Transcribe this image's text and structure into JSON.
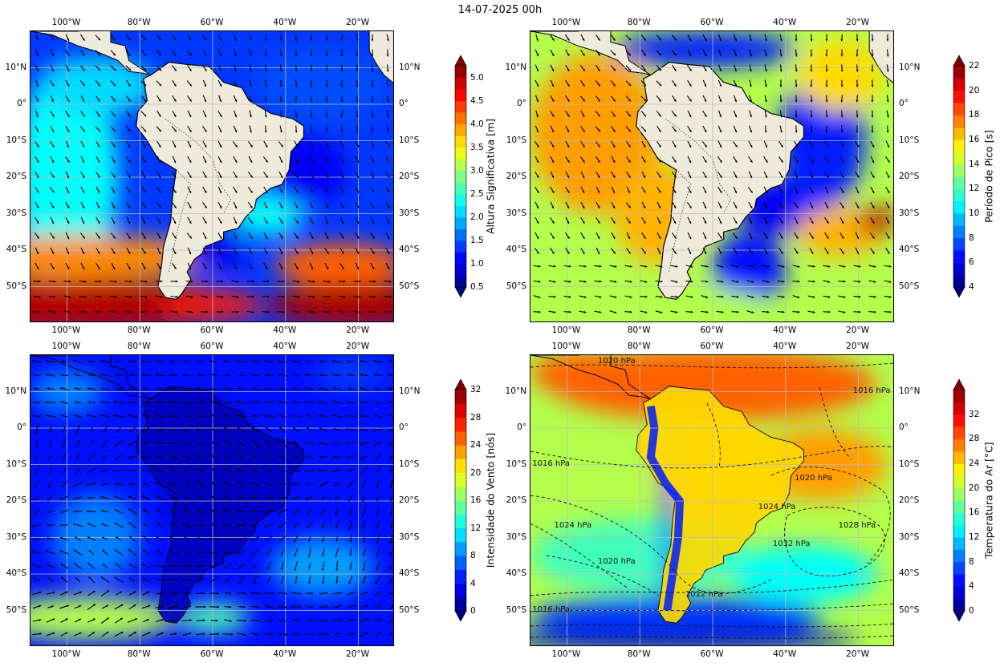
{
  "suptitle": "14-07-2025 00h",
  "axes": {
    "lon_ticks": [
      "100°W",
      "80°W",
      "60°W",
      "40°W",
      "20°W"
    ],
    "lon_values": [
      -100,
      -80,
      -60,
      -40,
      -20
    ],
    "lat_ticks": [
      "10°N",
      "0°",
      "10°S",
      "20°S",
      "30°S",
      "40°S",
      "50°S"
    ],
    "lat_values": [
      10,
      0,
      -10,
      -20,
      -30,
      -40,
      -50
    ],
    "lon_range": [
      -110,
      -10
    ],
    "lat_range": [
      -60,
      20
    ]
  },
  "panels": [
    {
      "id": "wave-height",
      "colorbar_label": "Altura Significativa [m]",
      "colorbar_ticks": [
        "0.5",
        "1.0",
        "1.5",
        "2.0",
        "2.5",
        "3.0",
        "3.5",
        "4.0",
        "4.5",
        "5.0"
      ],
      "colorbar_range": [
        0.5,
        5.25
      ],
      "colorbar_levels": 19,
      "colormap": "jet",
      "overlay": "direction-arrows"
    },
    {
      "id": "peak-period",
      "colorbar_label": "Período de Pico [s]",
      "colorbar_ticks": [
        "4",
        "6",
        "8",
        "10",
        "12",
        "14",
        "16",
        "18",
        "20",
        "22"
      ],
      "colorbar_range": [
        4,
        22
      ],
      "colorbar_levels": 18,
      "colormap": "jet",
      "overlay": "direction-arrows"
    },
    {
      "id": "wind-speed",
      "colorbar_label": "Intensidade do Vento [nós]",
      "colorbar_ticks": [
        "0",
        "4",
        "8",
        "12",
        "16",
        "20",
        "24",
        "28",
        "32"
      ],
      "colorbar_range": [
        0,
        32
      ],
      "colorbar_levels": 16,
      "colormap": "jet",
      "overlay": "wind-barbs"
    },
    {
      "id": "air-temperature",
      "colorbar_label": "Temperatura do Ar [°C]",
      "colorbar_ticks": [
        "0",
        "4",
        "8",
        "12",
        "16",
        "20",
        "24",
        "28",
        "32"
      ],
      "colorbar_range": [
        0,
        36
      ],
      "colorbar_levels": 18,
      "colormap": "jet",
      "overlay": "pressure-contours",
      "isobar_labels": [
        {
          "text": "1020 hPa",
          "lon": -86,
          "lat": 18
        },
        {
          "text": "1016 hPa",
          "lon": -16,
          "lat": 10
        },
        {
          "text": "1016 hPa",
          "lon": -104,
          "lat": -10
        },
        {
          "text": "1020 hPa",
          "lon": -32,
          "lat": -14
        },
        {
          "text": "1024 hPa",
          "lon": -42,
          "lat": -22
        },
        {
          "text": "1024 hPa",
          "lon": -98,
          "lat": -27
        },
        {
          "text": "1028 hPa",
          "lon": -20,
          "lat": -27
        },
        {
          "text": "1032 hPa",
          "lon": -38,
          "lat": -32
        },
        {
          "text": "1020 hPa",
          "lon": -86,
          "lat": -37
        },
        {
          "text": "1012 hPa",
          "lon": -62,
          "lat": -46
        },
        {
          "text": "1016 hPa",
          "lon": -104,
          "lat": -50
        }
      ]
    }
  ],
  "colors": {
    "land": "#efebdc",
    "arrow": "#000000",
    "grid": "#bbbbbb"
  }
}
